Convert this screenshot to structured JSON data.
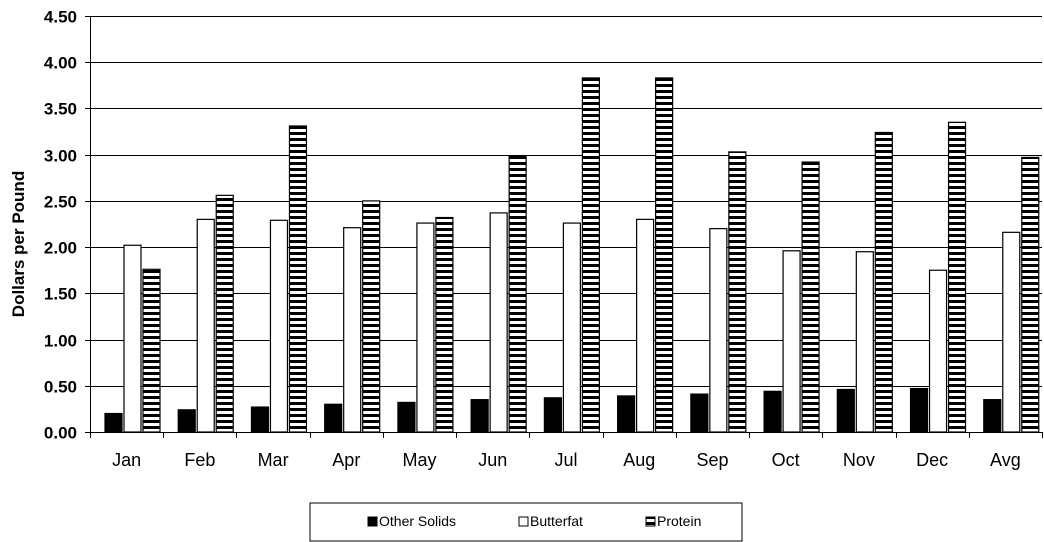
{
  "chart_data": {
    "type": "bar",
    "title": "",
    "xlabel": "",
    "ylabel": "Dollars per Pound",
    "ylim": [
      0,
      4.5
    ],
    "yticks": [
      "0.00",
      "0.50",
      "1.00",
      "1.50",
      "2.00",
      "2.50",
      "3.00",
      "3.50",
      "4.00",
      "4.50"
    ],
    "categories": [
      "Jan",
      "Feb",
      "Mar",
      "Apr",
      "May",
      "Jun",
      "Jul",
      "Aug",
      "Sep",
      "Oct",
      "Nov",
      "Dec",
      "Avg"
    ],
    "series": [
      {
        "name": "Other Solids",
        "color": "#000000",
        "pattern": "solid",
        "values": [
          0.2,
          0.24,
          0.27,
          0.3,
          0.32,
          0.35,
          0.37,
          0.39,
          0.41,
          0.44,
          0.46,
          0.47,
          0.35
        ]
      },
      {
        "name": "Butterfat",
        "color": "#ffffff",
        "pattern": "hollow",
        "values": [
          2.02,
          2.3,
          2.29,
          2.21,
          2.26,
          2.37,
          2.26,
          2.3,
          2.2,
          1.96,
          1.95,
          1.75,
          2.16
        ]
      },
      {
        "name": "Protein",
        "color": "#000000",
        "pattern": "horizontal-stripes",
        "values": [
          1.76,
          2.56,
          3.31,
          2.5,
          2.32,
          2.99,
          3.83,
          3.83,
          3.03,
          2.92,
          3.24,
          3.35,
          2.97
        ]
      }
    ],
    "grid": true,
    "legend_position": "bottom"
  }
}
